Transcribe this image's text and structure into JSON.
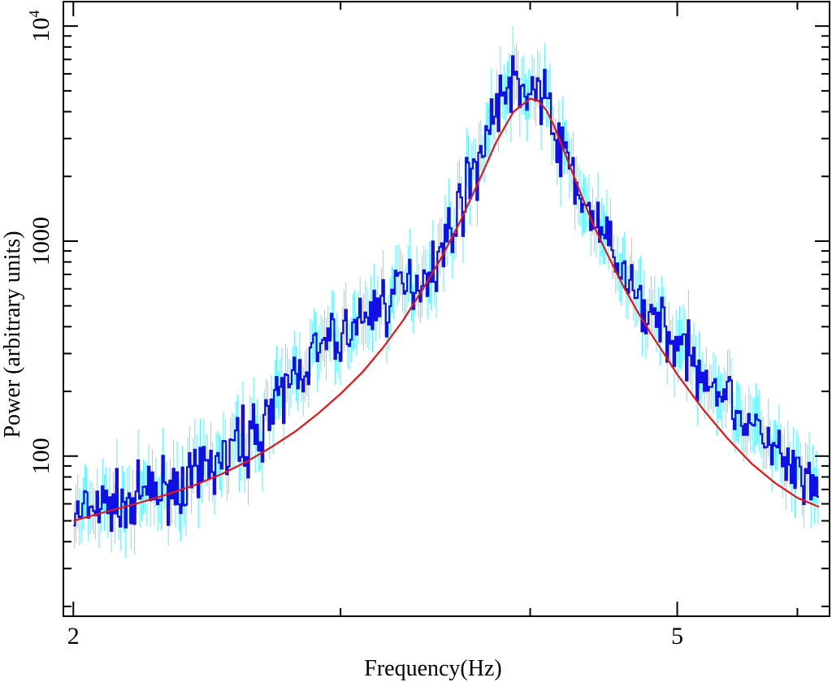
{
  "chart_data": {
    "type": "line",
    "title": "",
    "xlabel": "Frequency(Hz)",
    "ylabel": "Power (arbitrary units)",
    "x_scale": "log",
    "y_scale": "log",
    "xlim": [
      1.97,
      6.3
    ],
    "ylim": [
      18,
      13000
    ],
    "x_tick_labels": [
      {
        "value": 2,
        "label": "2"
      },
      {
        "value": 5,
        "label": "5"
      }
    ],
    "x_minor_ticks": [
      3,
      4,
      6
    ],
    "y_tick_labels": [
      {
        "value": 100,
        "label": "100"
      },
      {
        "value": 1000,
        "label": "1000"
      },
      {
        "value": 10000,
        "label": "10",
        "exponent": "4"
      }
    ],
    "grid": false,
    "legend": "none",
    "series": [
      {
        "style": "step",
        "color": "#1010e6",
        "error_color": "#55eeff",
        "x": [
          2.0,
          2.1,
          2.2,
          2.3,
          2.4,
          2.5,
          2.6,
          2.7,
          2.8,
          2.9,
          3.0,
          3.1,
          3.2,
          3.3,
          3.4,
          3.5,
          3.6,
          3.7,
          3.8,
          3.9,
          4.0,
          4.05,
          4.1,
          4.15,
          4.2,
          4.3,
          4.4,
          4.5,
          4.6,
          4.7,
          4.8,
          4.9,
          5.0,
          5.2,
          5.4,
          5.6,
          5.8,
          6.0,
          6.2
        ],
        "y": [
          52,
          58,
          64,
          70,
          78,
          95,
          118,
          160,
          240,
          300,
          360,
          420,
          520,
          600,
          700,
          900,
          1500,
          2400,
          4300,
          5500,
          5200,
          5000,
          4200,
          3400,
          2600,
          1800,
          1250,
          950,
          700,
          560,
          470,
          400,
          330,
          250,
          190,
          140,
          105,
          80,
          64
        ]
      },
      {
        "style": "line",
        "color": "#ee1111",
        "x": [
          2.0,
          2.1,
          2.2,
          2.3,
          2.4,
          2.5,
          2.6,
          2.7,
          2.8,
          2.9,
          3.0,
          3.1,
          3.2,
          3.3,
          3.4,
          3.5,
          3.6,
          3.7,
          3.8,
          3.9,
          4.0,
          4.05,
          4.1,
          4.15,
          4.2,
          4.3,
          4.4,
          4.5,
          4.6,
          4.7,
          4.8,
          4.9,
          5.0,
          5.2,
          5.4,
          5.6,
          5.8,
          6.0,
          6.2
        ],
        "y": [
          50,
          55,
          60,
          66,
          73,
          82,
          94,
          110,
          130,
          158,
          195,
          245,
          320,
          430,
          600,
          850,
          1250,
          1900,
          2900,
          4000,
          4600,
          4500,
          4050,
          3400,
          2750,
          1800,
          1200,
          860,
          630,
          480,
          375,
          300,
          240,
          165,
          120,
          92,
          75,
          64,
          58
        ]
      }
    ]
  }
}
